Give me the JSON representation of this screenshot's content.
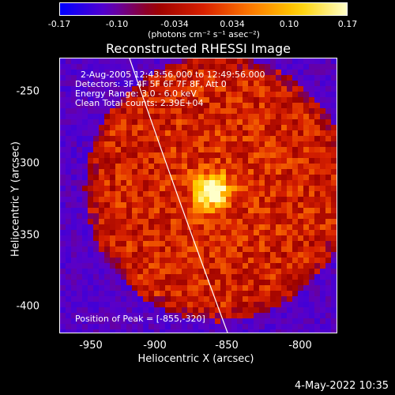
{
  "colorbar": {
    "ticks": [
      "-0.17",
      "-0.10",
      "-0.034",
      "0.034",
      "0.10",
      "0.17"
    ],
    "unit_label": "(photons cm⁻² s⁻¹ asec⁻²)"
  },
  "title": "Reconstructed RHESSI Image",
  "info": {
    "time_range": "2-Aug-2005 12:43:56.000 to 12:49:56.000",
    "detectors": "Detectors: 3F 4F 5F 6F 7F 8F, Att 0",
    "energy_range": "Energy Range: 3.0 - 6.0 keV",
    "clean_counts": "Clean     Total counts: 2.39E+04",
    "peak_position": "Position of Peak = [-855,-320]"
  },
  "axes": {
    "xlabel": "Heliocentric X (arcsec)",
    "ylabel": "Heliocentric Y (arcsec)",
    "xticks": [
      "-950",
      "-900",
      "-850",
      "-800"
    ],
    "yticks": [
      "-250",
      "-300",
      "-350",
      "-400"
    ]
  },
  "footer_date": "4-May-2022 10:35",
  "colors": {
    "background": "#000000",
    "text": "#ffffff",
    "limb": "#ffffff",
    "colormap": [
      "#0000ff",
      "#5a00c8",
      "#9a0000",
      "#d82000",
      "#ff7a00",
      "#ffd000",
      "#ffffc8"
    ]
  }
}
